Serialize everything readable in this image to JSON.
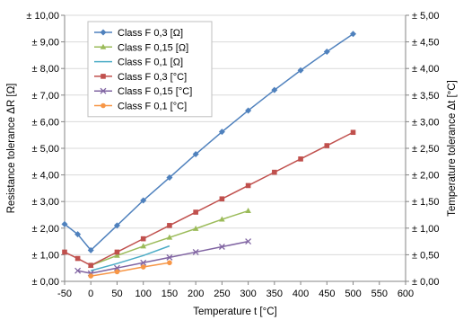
{
  "chart_data": {
    "type": "line",
    "title": "",
    "xlabel": "Temperature t [°C]",
    "ylabel_left": "Resistance tolerance ΔR [Ω]",
    "ylabel_right": "Temperature tolerance Δt [°C]",
    "xlim": [
      -50,
      600
    ],
    "ylim_left": [
      0,
      10
    ],
    "ylim_right": [
      0,
      5
    ],
    "x_ticks": [
      "-50",
      "0",
      "50",
      "100",
      "150",
      "200",
      "250",
      "300",
      "350",
      "400",
      "450",
      "500",
      "550",
      "600"
    ],
    "y_left_ticks": [
      "± 0,00",
      "± 1,00",
      "± 2,00",
      "± 3,00",
      "± 4,00",
      "± 5,00",
      "± 6,00",
      "± 7,00",
      "± 8,00",
      "± 9,00",
      "± 10,00"
    ],
    "y_right_ticks": [
      "± 0,00",
      "± 0,50",
      "± 1,00",
      "± 1,50",
      "± 2,00",
      "± 2,50",
      "± 3,00",
      "± 3,50",
      "± 4,00",
      "± 4,50",
      "± 5,00"
    ],
    "grid": "horizontal",
    "legend_position": "top-left",
    "series": [
      {
        "name": "Class F 0,3 [Ω]",
        "axis": "left",
        "color": "#4F81BD",
        "marker": "diamond",
        "x": [
          -50,
          -25,
          0,
          50,
          100,
          150,
          200,
          250,
          300,
          350,
          400,
          450,
          500
        ],
        "y": [
          2.15,
          1.77,
          1.17,
          2.1,
          3.04,
          3.9,
          4.78,
          5.62,
          6.42,
          7.19,
          7.93,
          8.63,
          9.3
        ]
      },
      {
        "name": "Class F 0,15 [Ω]",
        "axis": "left",
        "color": "#9BBB59",
        "marker": "triangle",
        "x": [
          0,
          50,
          100,
          150,
          200,
          250,
          300
        ],
        "y": [
          0.6,
          0.97,
          1.32,
          1.65,
          1.98,
          2.33,
          2.65
        ]
      },
      {
        "name": "Class F 0,1 [Ω]",
        "axis": "left",
        "color": "#4BACC6",
        "marker": "none",
        "x": [
          0,
          50,
          100,
          150
        ],
        "y": [
          0.4,
          0.67,
          0.97,
          1.33
        ]
      },
      {
        "name": "Class F 0,3 [°C]",
        "axis": "right",
        "color": "#C0504D",
        "marker": "square",
        "x": [
          -50,
          -25,
          0,
          50,
          100,
          150,
          200,
          250,
          300,
          350,
          400,
          450,
          500
        ],
        "y": [
          0.55,
          0.43,
          0.3,
          0.55,
          0.8,
          1.05,
          1.3,
          1.55,
          1.8,
          2.05,
          2.3,
          2.55,
          2.8
        ]
      },
      {
        "name": "Class F 0,15 [°C]",
        "axis": "right",
        "color": "#8064A2",
        "marker": "x",
        "x": [
          -25,
          0,
          50,
          100,
          150,
          200,
          250,
          300
        ],
        "y": [
          0.2,
          0.15,
          0.25,
          0.35,
          0.45,
          0.55,
          0.65,
          0.75
        ]
      },
      {
        "name": "Class F 0,1 [°C]",
        "axis": "right",
        "color": "#F79646",
        "marker": "circle",
        "x": [
          0,
          50,
          100,
          150
        ],
        "y": [
          0.1,
          0.18,
          0.27,
          0.35
        ]
      }
    ]
  }
}
